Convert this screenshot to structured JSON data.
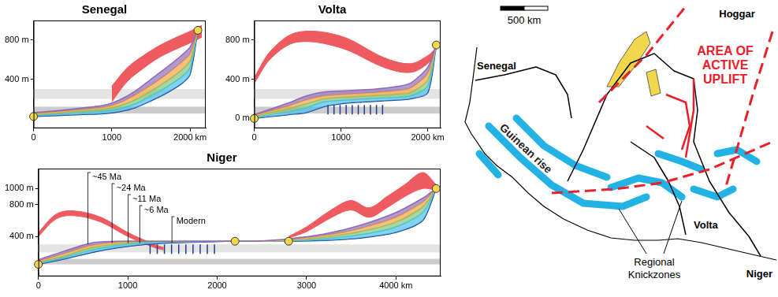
{
  "chart_data": [
    {
      "type": "line",
      "title": "Senegal",
      "grid": false,
      "xlim": [
        0,
        2200
      ],
      "xticks": [
        0,
        1000,
        {
          "value": 2000,
          "label": "2000 km"
        }
      ],
      "ylim": [
        -100,
        1000
      ],
      "yticks": [
        {
          "value": 400,
          "label": "400 m"
        },
        {
          "value": 800,
          "label": "800 m"
        }
      ],
      "bands": [
        {
          "from": 200,
          "to": 300,
          "color": "#e4e4e4"
        },
        {
          "from": 50,
          "to": 120,
          "color": "#cccccc"
        }
      ],
      "x": [
        0,
        300,
        600,
        900,
        1100,
        1300,
        1500,
        1700,
        1900,
        2000,
        2100
      ],
      "series": [
        {
          "color": "#8e6bb8",
          "values": [
            60,
            80,
            105,
            135,
            190,
            280,
            400,
            520,
            650,
            730,
            900
          ]
        },
        {
          "color": "#f3a43b",
          "values": [
            50,
            70,
            90,
            115,
            160,
            240,
            340,
            450,
            580,
            660,
            900
          ]
        },
        {
          "color": "#7cc576",
          "values": [
            40,
            55,
            75,
            95,
            130,
            190,
            280,
            380,
            500,
            590,
            900
          ]
        },
        {
          "color": "#45c1ea",
          "values": [
            30,
            45,
            60,
            75,
            100,
            150,
            230,
            320,
            430,
            520,
            900
          ]
        },
        {
          "color": "#1f3a93",
          "values": [
            20,
            30,
            40,
            50,
            70,
            110,
            180,
            260,
            360,
            450,
            900
          ]
        }
      ],
      "uplift": [
        {
          "color": "#ee5a5f",
          "x": [
            1000,
            1200,
            1400,
            1600,
            1800,
            2000,
            2150
          ],
          "upper": [
            330,
            520,
            640,
            740,
            820,
            890,
            950
          ],
          "lower": [
            170,
            380,
            510,
            620,
            700,
            770,
            830
          ]
        }
      ],
      "knickpoints": {
        "color": "#f2d64b",
        "marker": "circle",
        "x": [
          0,
          2100
        ],
        "values": [
          20,
          900
        ]
      }
    },
    {
      "type": "line",
      "title": "Volta",
      "grid": false,
      "xlim": [
        0,
        2150
      ],
      "xticks": [
        0,
        1000,
        {
          "value": 2000,
          "label": "2000 km"
        }
      ],
      "ylim": [
        -100,
        1000
      ],
      "yticks": [
        {
          "value": 0,
          "label": "0 m"
        },
        {
          "value": 400,
          "label": "400 m"
        },
        {
          "value": 800,
          "label": "800 m"
        }
      ],
      "bands": [
        {
          "from": 200,
          "to": 300,
          "color": "#e4e4e4"
        },
        {
          "from": 50,
          "to": 120,
          "color": "#cccccc"
        }
      ],
      "x": [
        0,
        200,
        400,
        600,
        800,
        1000,
        1200,
        1400,
        1600,
        1800,
        2000,
        2100
      ],
      "series": [
        {
          "color": "#8e6bb8",
          "values": [
            40,
            100,
            160,
            230,
            270,
            280,
            290,
            300,
            320,
            360,
            520,
            750
          ]
        },
        {
          "color": "#f3a43b",
          "values": [
            30,
            80,
            130,
            190,
            230,
            245,
            255,
            265,
            280,
            310,
            460,
            750
          ]
        },
        {
          "color": "#7cc576",
          "values": [
            20,
            60,
            100,
            150,
            200,
            215,
            225,
            235,
            245,
            265,
            390,
            750
          ]
        },
        {
          "color": "#45c1ea",
          "values": [
            10,
            40,
            70,
            110,
            170,
            185,
            195,
            205,
            215,
            230,
            330,
            750
          ]
        },
        {
          "color": "#1f3a93",
          "values": [
            0,
            20,
            40,
            60,
            120,
            150,
            165,
            175,
            185,
            200,
            260,
            750
          ]
        }
      ],
      "uplift": [
        {
          "color": "#ee5a5f",
          "x": [
            0,
            200,
            500,
            1000,
            1500,
            1800,
            2000,
            2100
          ],
          "upper": [
            420,
            700,
            880,
            840,
            620,
            560,
            640,
            720
          ],
          "lower": [
            360,
            620,
            780,
            720,
            520,
            470,
            560,
            690
          ]
        }
      ],
      "knickpoints": {
        "color": "#f2d64b",
        "marker": "circle",
        "x": [
          0,
          2100
        ],
        "values": [
          0,
          750
        ]
      },
      "knickzone": {
        "color": "#1f3a93",
        "marker": "line",
        "x": [
          850,
          920,
          990,
          1060,
          1130,
          1200,
          1270,
          1340,
          1410,
          1480
        ],
        "values": [
          90,
          90,
          90,
          90,
          90,
          90,
          90,
          90,
          90,
          90
        ]
      }
    },
    {
      "type": "line",
      "title": "Niger",
      "grid": false,
      "xlim": [
        0,
        4500
      ],
      "xticks": [
        0,
        1000,
        2000,
        3000,
        {
          "value": 4000,
          "label": "4000 km"
        }
      ],
      "ylim": [
        -100,
        1250
      ],
      "yticks": [
        {
          "value": 400,
          "label": "400 m"
        },
        {
          "value": 800,
          "label": "800 m"
        },
        {
          "value": 1000,
          "label": "1000 m"
        }
      ],
      "bands": [
        {
          "from": 200,
          "to": 300,
          "color": "#e4e4e4"
        },
        {
          "from": 50,
          "to": 120,
          "color": "#cccccc"
        }
      ],
      "x": [
        0,
        300,
        600,
        900,
        1200,
        1500,
        1800,
        2100,
        2400,
        2800,
        3200,
        3600,
        4000,
        4300,
        4450
      ],
      "series": [
        {
          "name": "~45 Ma",
          "label_at": 550,
          "color": "#8e6bb8",
          "values": [
            110,
            220,
            320,
            340,
            340,
            340,
            340,
            340,
            340,
            370,
            430,
            540,
            700,
            880,
            1000
          ]
        },
        {
          "name": "~24 Ma",
          "label_at": 820,
          "color": "#f3a43b",
          "values": [
            90,
            190,
            290,
            330,
            340,
            340,
            340,
            340,
            340,
            360,
            410,
            500,
            640,
            830,
            1000
          ]
        },
        {
          "name": "~11 Ma",
          "label_at": 1000,
          "color": "#7cc576",
          "values": [
            70,
            160,
            260,
            310,
            330,
            335,
            340,
            340,
            340,
            350,
            390,
            460,
            580,
            770,
            1000
          ]
        },
        {
          "name": "~6 Ma",
          "label_at": 1130,
          "color": "#45c1ea",
          "values": [
            60,
            140,
            230,
            290,
            320,
            330,
            335,
            340,
            340,
            345,
            370,
            420,
            520,
            700,
            1000
          ]
        },
        {
          "name": "Modern",
          "label_at": 1490,
          "color": "#1f3a93",
          "values": [
            50,
            120,
            200,
            260,
            300,
            320,
            330,
            340,
            340,
            340,
            350,
            380,
            450,
            600,
            1000
          ]
        }
      ],
      "uplift": [
        {
          "color": "#ee5a5f",
          "x": [
            0,
            200,
            400,
            700,
            1000,
            1300,
            1400
          ],
          "upper": [
            450,
            680,
            720,
            640,
            450,
            300,
            260
          ],
          "lower": [
            400,
            620,
            660,
            580,
            400,
            260,
            230
          ]
        },
        {
          "color": "#ee5a5f",
          "x": [
            2800,
            3000,
            3300,
            3500,
            3700,
            3900,
            4100,
            4300,
            4450
          ],
          "upper": [
            400,
            520,
            750,
            850,
            760,
            900,
            1050,
            1200,
            1050
          ],
          "lower": [
            380,
            460,
            650,
            730,
            640,
            760,
            900,
            1000,
            980
          ]
        }
      ],
      "knickpoints": {
        "color": "#f2d64b",
        "marker": "circle",
        "x": [
          0,
          2200,
          2800,
          4450
        ],
        "values": [
          50,
          340,
          340,
          1000
        ]
      },
      "knickzone": {
        "color": "#1f3a93",
        "marker": "line",
        "x": [
          1250,
          1330,
          1410,
          1490,
          1570,
          1650,
          1730,
          1810,
          1890,
          1970
        ],
        "values": [
          240,
          240,
          240,
          240,
          240,
          240,
          240,
          240,
          240,
          240
        ]
      }
    }
  ],
  "map": {
    "scale_bar": "500 km",
    "labels": {
      "hoggar": "Hoggar",
      "uplift": "AREA OF ACTIVE UPLIFT",
      "senegal": "Senegal",
      "guinean_rise": "Guinean rise",
      "volta": "Volta",
      "niger": "Niger",
      "knickzones": "Regional Knickzones"
    }
  }
}
